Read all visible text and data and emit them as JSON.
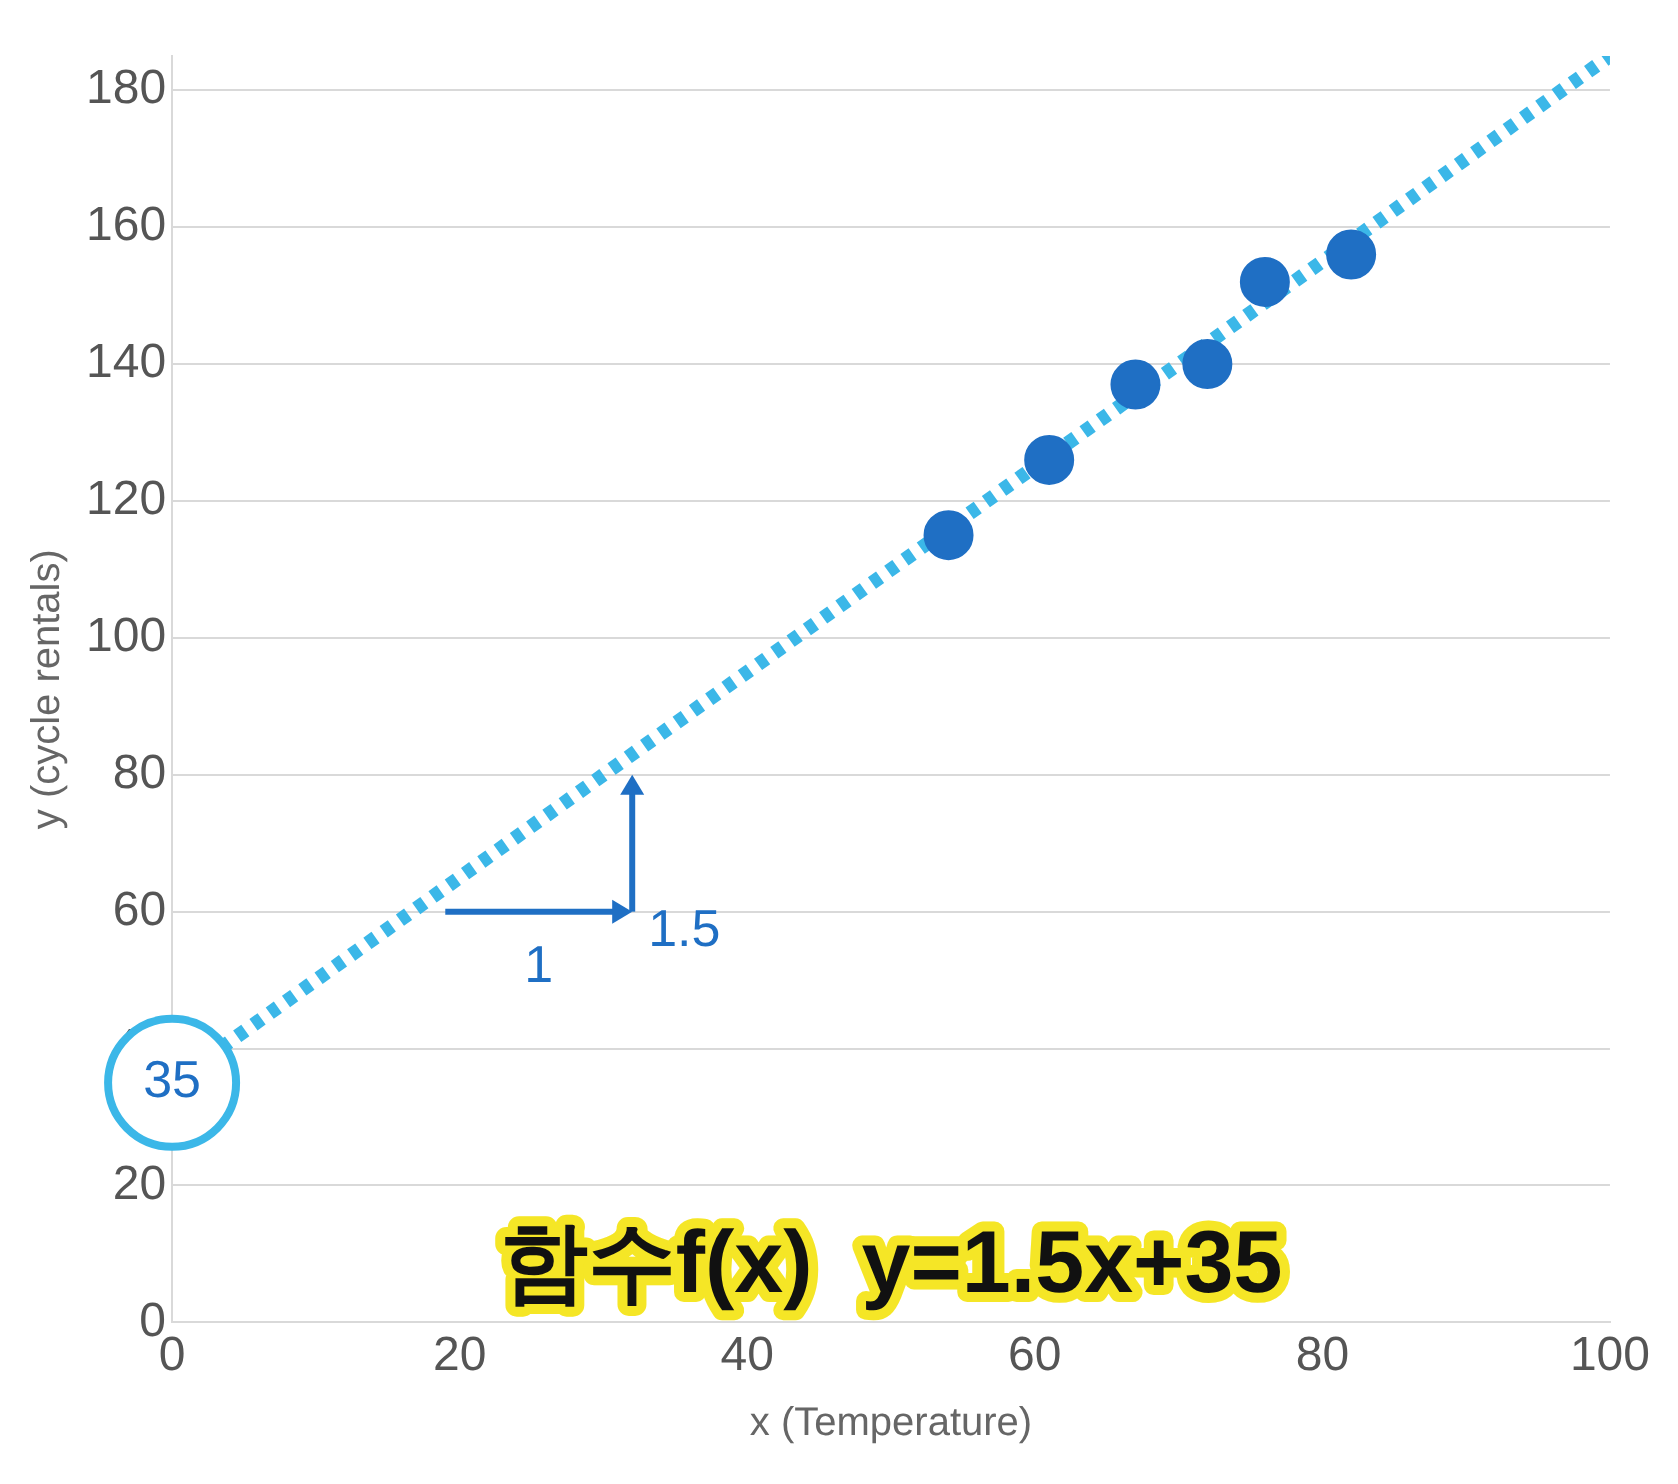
{
  "chart_data": {
    "type": "scatter",
    "xlabel": "x (Temperature)",
    "ylabel": "y (cycle rentals)",
    "xlim": [
      0,
      100
    ],
    "xticks": [
      0,
      20,
      40,
      60,
      80,
      100
    ],
    "ylim": [
      0,
      185
    ],
    "yticks": [
      0,
      20,
      40,
      60,
      80,
      100,
      120,
      140,
      160,
      180
    ],
    "grid": "y",
    "legend": false,
    "series": [
      {
        "type": "scatter",
        "color": "#1f6fc4",
        "marker": "circle",
        "x": [
          54,
          61,
          67,
          72,
          76,
          82
        ],
        "values": [
          115,
          126,
          137,
          140,
          152,
          156
        ]
      },
      {
        "type": "line",
        "color": "#3bb7e8",
        "line_style": "dotted",
        "x": [
          0,
          100
        ],
        "values": [
          35,
          185
        ]
      }
    ],
    "annotations": [
      {
        "text": "35",
        "x": 0,
        "y": 35
      },
      "1",
      "1.5",
      "함수f(x)  y=1.5x+35"
    ]
  }
}
